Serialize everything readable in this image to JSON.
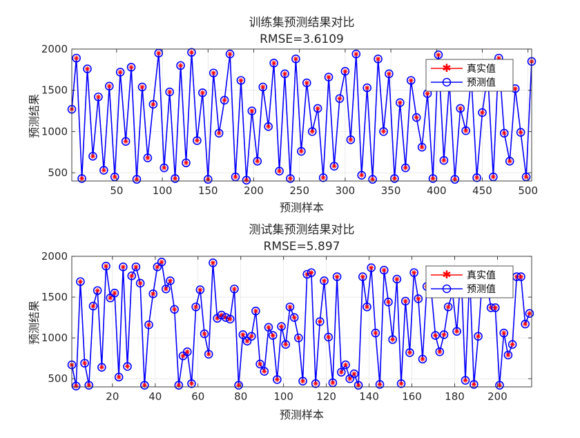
{
  "chart_data": [
    {
      "type": "line",
      "title": "训练集预测结果对比",
      "subtitle": "RMSE=3.6109",
      "xlabel": "预测样本",
      "ylabel": "预测结果",
      "xlim": [
        1,
        504
      ],
      "ylim": [
        400,
        2000
      ],
      "xticks": [
        50,
        100,
        150,
        200,
        250,
        300,
        350,
        400,
        450,
        500
      ],
      "yticks": [
        500,
        1000,
        1500,
        2000
      ],
      "legend": "top-right",
      "grid": true,
      "series": [
        {
          "name": "真实值",
          "color": "#ff0000",
          "marker": "asterisk"
        },
        {
          "name": "预测值",
          "color": "#0000ff",
          "marker": "circle"
        }
      ],
      "sample_x": [
        1,
        6,
        12,
        18,
        24,
        30,
        36,
        42,
        48,
        54,
        60,
        66,
        72,
        78,
        84,
        90,
        96,
        102,
        108,
        114,
        120,
        126,
        132,
        138,
        144,
        150,
        156,
        162,
        168,
        174,
        180,
        186,
        192,
        198,
        204,
        210,
        216,
        222,
        228,
        234,
        240,
        246,
        252,
        258,
        264,
        270,
        276,
        282,
        288,
        294,
        300,
        306,
        312,
        318,
        324,
        330,
        336,
        342,
        348,
        354,
        360,
        366,
        372,
        378,
        384,
        390,
        396,
        402,
        408,
        414,
        420,
        426,
        432,
        438,
        444,
        450,
        456,
        462,
        468,
        474,
        480,
        486,
        492,
        498,
        504
      ],
      "sample_y": [
        1270,
        1890,
        430,
        1760,
        700,
        1420,
        530,
        1550,
        450,
        1720,
        880,
        1780,
        420,
        1540,
        680,
        1330,
        1950,
        560,
        1480,
        430,
        1800,
        620,
        1960,
        890,
        1470,
        420,
        1710,
        980,
        1380,
        1940,
        450,
        1620,
        410,
        1250,
        640,
        1540,
        1060,
        1830,
        520,
        1700,
        430,
        1880,
        760,
        1590,
        1000,
        1280,
        440,
        1660,
        580,
        1400,
        1730,
        900,
        1940,
        470,
        1530,
        420,
        1880,
        1000,
        1700,
        430,
        1350,
        560,
        1620,
        1170,
        810,
        1460,
        430,
        1930,
        650,
        1600,
        420,
        1280,
        1010,
        1650,
        440,
        1230,
        1700,
        450,
        1890,
        980,
        640,
        1520,
        990,
        450,
        1850
      ]
    },
    {
      "type": "line",
      "title": "测试集预测结果对比",
      "subtitle": "RMSE=5.897",
      "xlabel": "预测样本",
      "ylabel": "预测结果",
      "xlim": [
        1,
        216
      ],
      "ylim": [
        400,
        2000
      ],
      "xticks": [
        20,
        40,
        60,
        80,
        100,
        120,
        140,
        160,
        180,
        200
      ],
      "yticks": [
        500,
        1000,
        1500,
        2000
      ],
      "legend": "top-right",
      "grid": true,
      "series": [
        {
          "name": "真实值",
          "color": "#ff0000",
          "marker": "asterisk"
        },
        {
          "name": "预测值",
          "color": "#0000ff",
          "marker": "circle"
        }
      ],
      "sample_x": [
        1,
        3,
        5,
        7,
        9,
        11,
        13,
        15,
        17,
        19,
        21,
        23,
        25,
        27,
        29,
        31,
        33,
        35,
        37,
        39,
        41,
        43,
        45,
        47,
        49,
        51,
        53,
        55,
        57,
        59,
        61,
        63,
        65,
        67,
        69,
        71,
        73,
        75,
        77,
        79,
        81,
        83,
        85,
        87,
        89,
        91,
        93,
        95,
        97,
        99,
        101,
        103,
        105,
        107,
        109,
        111,
        113,
        115,
        117,
        119,
        121,
        123,
        125,
        127,
        129,
        131,
        133,
        135,
        137,
        139,
        141,
        143,
        145,
        147,
        149,
        151,
        153,
        155,
        157,
        159,
        161,
        163,
        165,
        167,
        169,
        171,
        173,
        175,
        177,
        179,
        181,
        183,
        185,
        187,
        189,
        191,
        193,
        195,
        197,
        199,
        201,
        203,
        205,
        207,
        209,
        211,
        213,
        215
      ],
      "sample_y": [
        670,
        410,
        1690,
        690,
        420,
        1390,
        1580,
        640,
        1880,
        1490,
        1550,
        520,
        1870,
        650,
        1760,
        1870,
        1670,
        420,
        1160,
        1540,
        1870,
        1930,
        1600,
        1700,
        1350,
        420,
        780,
        830,
        440,
        1380,
        1590,
        1050,
        800,
        1920,
        1240,
        1280,
        1250,
        1230,
        1600,
        420,
        1040,
        960,
        1020,
        1330,
        680,
        590,
        1130,
        1030,
        490,
        1140,
        920,
        1380,
        1250,
        1000,
        470,
        1780,
        1800,
        440,
        1200,
        1700,
        1010,
        450,
        1750,
        580,
        670,
        500,
        560,
        420,
        1750,
        1380,
        1860,
        1060,
        430,
        1830,
        1440,
        980,
        1720,
        440,
        1450,
        820,
        1800,
        1480,
        740,
        1630,
        1590,
        1030,
        830,
        1040,
        1380,
        1550,
        1080,
        1820,
        480,
        1780,
        430,
        1020,
        1760,
        1680,
        1370,
        1370,
        420,
        1060,
        790,
        920,
        1750,
        1750,
        1170,
        1300
      ]
    }
  ]
}
